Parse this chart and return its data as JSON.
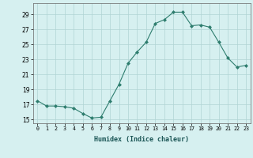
{
  "xlabel": "Humidex (Indice chaleur)",
  "x": [
    0,
    1,
    2,
    3,
    4,
    5,
    6,
    7,
    8,
    9,
    10,
    11,
    12,
    13,
    14,
    15,
    16,
    17,
    18,
    19,
    20,
    21,
    22,
    23
  ],
  "y": [
    17.5,
    16.8,
    16.8,
    16.7,
    16.5,
    15.8,
    15.2,
    15.3,
    17.5,
    19.7,
    22.5,
    24.0,
    25.3,
    27.8,
    28.3,
    29.3,
    29.3,
    27.5,
    27.6,
    27.3,
    25.3,
    23.2,
    22.0,
    22.2
  ],
  "line_color": "#2e7d6e",
  "marker": "D",
  "marker_size": 2.0,
  "bg_color": "#d6f0f0",
  "grid_color": "#b0d4d4",
  "ylim": [
    14.5,
    30.5
  ],
  "xlim": [
    -0.5,
    23.5
  ],
  "yticks": [
    15,
    17,
    19,
    21,
    23,
    25,
    27,
    29
  ],
  "xtick_labels": [
    "0",
    "1",
    "2",
    "3",
    "4",
    "5",
    "6",
    "7",
    "8",
    "9",
    "10",
    "11",
    "12",
    "13",
    "14",
    "15",
    "16",
    "17",
    "18",
    "19",
    "20",
    "21",
    "22",
    "23"
  ],
  "xlabel_fontsize": 6.0,
  "ytick_fontsize": 5.5,
  "xtick_fontsize": 4.8
}
